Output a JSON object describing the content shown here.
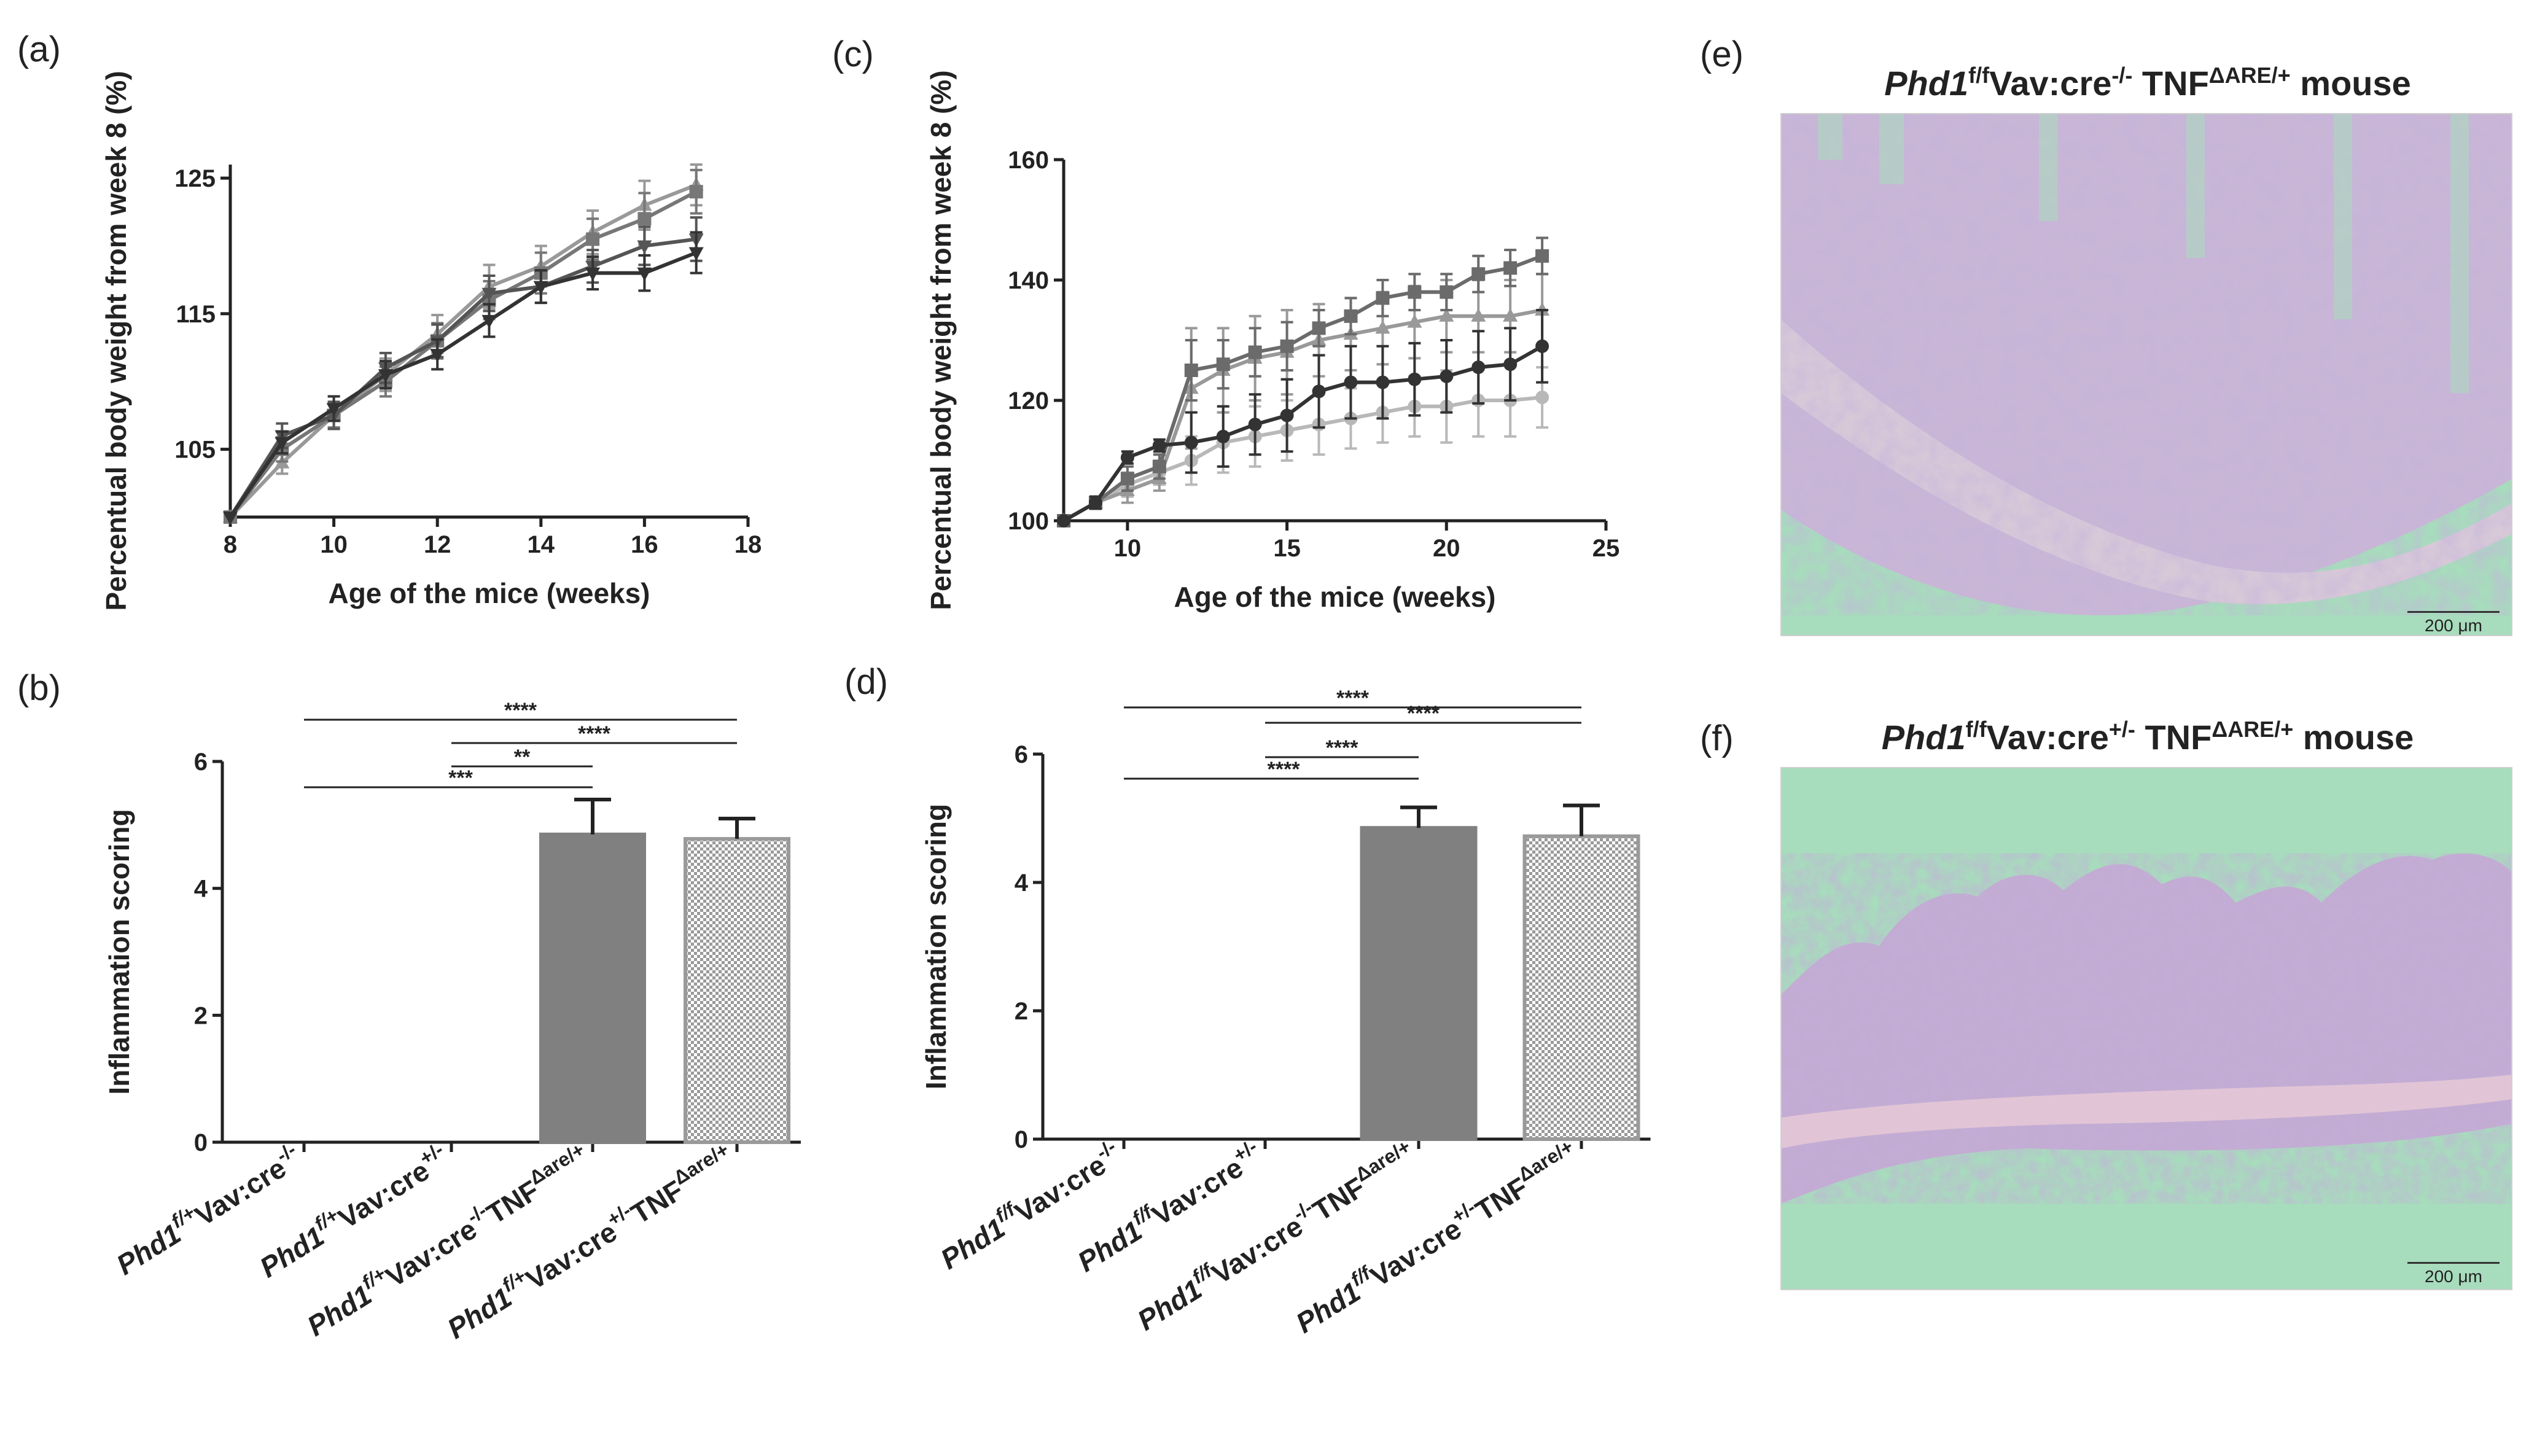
{
  "colors": {
    "series_dark": "#333333",
    "series_mid": "#6b6b6b",
    "series_light": "#999999",
    "series_pale": "#b8b8b8",
    "bar_solid": "#808080",
    "bar_hatch_stroke": "#9a9a9a",
    "tissue_bg": "#a7dcbc",
    "tissue_purple": "#9c88b8"
  },
  "panels": {
    "a": {
      "label": "(a)"
    },
    "b": {
      "label": "(b)"
    },
    "c": {
      "label": "(c)"
    },
    "d": {
      "label": "(d)"
    },
    "e": {
      "label": "(e)",
      "title": {
        "gene": "Phd1",
        "sup1": "f/f",
        "mid": "Vav:cre",
        "sup2": "-/-",
        "tnf": " TNF",
        "sup3": "ΔARE/+",
        "tail": "  mouse"
      },
      "scale_bar": "200 μm"
    },
    "f": {
      "label": "(f)",
      "title": {
        "gene": "Phd1",
        "sup1": "f/f",
        "mid": "Vav:cre",
        "sup2": "+/-",
        "tnf": " TNF",
        "sup3": "ΔARE/+",
        "tail": "  mouse"
      },
      "scale_bar": "200 μm"
    }
  },
  "chart_data": [
    {
      "id": "a",
      "type": "line",
      "xlabel": "Age of the mice (weeks)",
      "ylabel": "Percentual body weight from week 8 (%)",
      "xlim": [
        8,
        18
      ],
      "ylim": [
        100,
        126
      ],
      "xticks": [
        8,
        10,
        12,
        14,
        16,
        18
      ],
      "yticks": [
        105,
        115,
        125
      ],
      "x": [
        8,
        9,
        10,
        11,
        12,
        13,
        14,
        15,
        16,
        17
      ],
      "series": [
        {
          "name": "series-1",
          "color": "#999999",
          "marker": "triangle",
          "values": [
            100,
            104,
            107.5,
            110.5,
            113.5,
            117,
            118.5,
            121,
            123,
            124.5
          ],
          "errors": [
            0,
            0.8,
            0.9,
            1.2,
            1.4,
            1.6,
            1.5,
            1.6,
            1.8,
            1.5
          ]
        },
        {
          "name": "series-2",
          "color": "#777777",
          "marker": "square",
          "values": [
            100,
            105,
            107.5,
            110,
            113,
            116,
            118,
            120.5,
            122,
            124
          ],
          "errors": [
            0,
            0.9,
            0.9,
            1.1,
            1.3,
            1.4,
            1.5,
            1.5,
            1.9,
            1.6
          ]
        },
        {
          "name": "series-3",
          "color": "#555555",
          "marker": "triangle-down",
          "values": [
            100,
            106,
            107.5,
            111,
            113,
            116.5,
            117,
            118.5,
            120,
            120.5
          ],
          "errors": [
            0,
            0.9,
            1.0,
            1.1,
            1.2,
            1.3,
            1.2,
            1.2,
            1.4,
            1.6
          ]
        },
        {
          "name": "series-4",
          "color": "#333333",
          "marker": "triangle-down",
          "values": [
            100,
            105.5,
            108,
            110.5,
            112,
            114.5,
            117,
            118,
            118,
            119.5
          ],
          "errors": [
            0,
            0.8,
            0.9,
            1.0,
            1.1,
            1.2,
            1.2,
            1.2,
            1.3,
            1.5
          ]
        }
      ]
    },
    {
      "id": "b",
      "type": "bar",
      "ylabel": "Inflammation scoring",
      "ylim": [
        0,
        6
      ],
      "yticks": [
        0,
        2,
        4,
        6
      ],
      "categories": [
        {
          "gene": "Phd1",
          "sup1": "f/+",
          "mid": "Vav:cre",
          "sup2": "-/-",
          "tnf": "",
          "sup3": ""
        },
        {
          "gene": "Phd1",
          "sup1": "f/+",
          "mid": "Vav:cre",
          "sup2": "+/-",
          "tnf": "",
          "sup3": ""
        },
        {
          "gene": "Phd1",
          "sup1": "f/+",
          "mid": "Vav:cre",
          "sup2": "-/-",
          "tnf": "TNF",
          "sup3": "Δare/+"
        },
        {
          "gene": "Phd1",
          "sup1": "f/+",
          "mid": "Vav:cre",
          "sup2": "+/-",
          "tnf": "TNF",
          "sup3": "Δare/+"
        }
      ],
      "values": [
        0,
        0,
        4.85,
        4.78
      ],
      "errors": [
        0,
        0,
        0.55,
        0.32
      ],
      "fills": [
        "none",
        "none",
        "solid",
        "hatch"
      ],
      "significance": [
        {
          "from": 0,
          "to": 2,
          "label": "***"
        },
        {
          "from": 1,
          "to": 2,
          "label": "**"
        },
        {
          "from": 1,
          "to": 3,
          "label": "****"
        },
        {
          "from": 0,
          "to": 3,
          "label": "****"
        }
      ]
    },
    {
      "id": "c",
      "type": "line",
      "xlabel": "Age of the mice (weeks)",
      "ylabel": "Percentual body weight from week 8 (%)",
      "xlim": [
        8,
        25
      ],
      "ylim": [
        100,
        160
      ],
      "xticks": [
        10,
        15,
        20,
        25
      ],
      "yticks": [
        100,
        120,
        140,
        160
      ],
      "x": [
        8,
        9,
        10,
        11,
        12,
        13,
        14,
        15,
        16,
        17,
        18,
        19,
        20,
        21,
        22,
        23
      ],
      "series": [
        {
          "name": "series-1",
          "color": "#b8b8b8",
          "marker": "circle",
          "values": [
            100,
            103,
            106,
            108,
            110,
            113,
            114,
            115,
            116,
            117,
            118,
            119,
            119,
            120,
            120,
            120.5
          ],
          "errors": [
            0,
            1,
            2,
            2,
            4,
            5,
            5,
            5,
            5,
            5,
            5,
            5,
            6,
            6,
            6,
            5
          ]
        },
        {
          "name": "series-2",
          "color": "#999999",
          "marker": "triangle",
          "values": [
            100,
            103,
            105,
            107,
            122,
            125,
            127,
            128,
            130,
            131,
            132,
            133,
            134,
            134,
            134,
            135
          ],
          "errors": [
            0,
            1,
            2,
            2,
            10,
            7,
            7,
            7,
            6,
            6,
            6,
            6,
            6,
            6,
            6,
            6
          ]
        },
        {
          "name": "series-3",
          "color": "#6b6b6b",
          "marker": "square",
          "values": [
            100,
            103,
            107,
            109,
            125,
            126,
            128,
            129,
            132,
            134,
            137,
            138,
            138,
            141,
            142,
            144
          ],
          "errors": [
            0,
            1,
            2,
            2,
            5,
            4,
            4,
            4,
            3,
            3,
            3,
            3,
            3,
            3,
            3,
            3
          ]
        },
        {
          "name": "series-4",
          "color": "#333333",
          "marker": "circle",
          "values": [
            100,
            103,
            110.5,
            112.5,
            113,
            114,
            116,
            117.5,
            121.5,
            123,
            123,
            123.5,
            124,
            125.5,
            126,
            129
          ],
          "errors": [
            0,
            1,
            1,
            1,
            5,
            5,
            5,
            6,
            6,
            6,
            6,
            6,
            6,
            6,
            6,
            6
          ]
        }
      ]
    },
    {
      "id": "d",
      "type": "bar",
      "ylabel": "Inflammation scoring",
      "ylim": [
        0,
        6
      ],
      "yticks": [
        0,
        2,
        4,
        6
      ],
      "categories": [
        {
          "gene": "Phd1",
          "sup1": "f/f",
          "mid": "Vav:cre",
          "sup2": "-/-",
          "tnf": "",
          "sup3": ""
        },
        {
          "gene": "Phd1",
          "sup1": "f/f",
          "mid": "Vav:cre",
          "sup2": "+/-",
          "tnf": "",
          "sup3": ""
        },
        {
          "gene": "Phd1",
          "sup1": "f/f",
          "mid": "Vav:cre",
          "sup2": "-/-",
          "tnf": "TNF",
          "sup3": "Δare/+"
        },
        {
          "gene": "Phd1",
          "sup1": "f/f",
          "mid": "Vav:cre",
          "sup2": "+/-",
          "tnf": "TNF",
          "sup3": "Δare/+"
        }
      ],
      "values": [
        0,
        0,
        4.85,
        4.72
      ],
      "errors": [
        0,
        0,
        0.32,
        0.48
      ],
      "fills": [
        "none",
        "none",
        "solid",
        "hatch"
      ],
      "significance": [
        {
          "from": 0,
          "to": 2,
          "label": "****"
        },
        {
          "from": 1,
          "to": 2,
          "label": "****"
        },
        {
          "from": 1,
          "to": 3,
          "label": "****"
        },
        {
          "from": 0,
          "to": 3,
          "label": "****"
        }
      ]
    }
  ]
}
